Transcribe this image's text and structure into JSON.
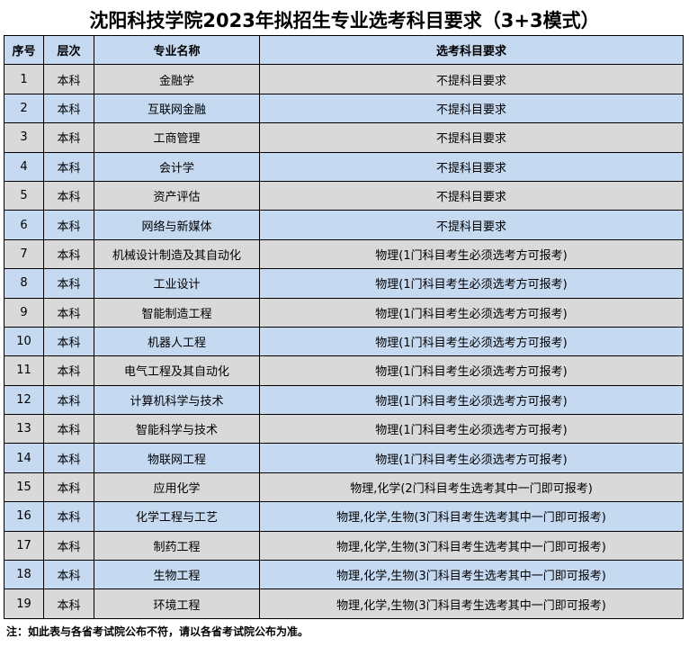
{
  "title": "沈阳科技学院2023年拟招生专业选考科目要求（3+3模式）",
  "headers": [
    "序号",
    "层次",
    "专业名称",
    "选考科目要求"
  ],
  "rows": [
    [
      "1",
      "本科",
      "金融学",
      "不提科目要求"
    ],
    [
      "2",
      "本科",
      "互联网金融",
      "不提科目要求"
    ],
    [
      "3",
      "本科",
      "工商管理",
      "不提科目要求"
    ],
    [
      "4",
      "本科",
      "会计学",
      "不提科目要求"
    ],
    [
      "5",
      "本科",
      "资产评估",
      "不提科目要求"
    ],
    [
      "6",
      "本科",
      "网络与新媒体",
      "不提科目要求"
    ],
    [
      "7",
      "本科",
      "机械设计制造及其自动化",
      "物理(1门科目考生必须选考方可报考)"
    ],
    [
      "8",
      "本科",
      "工业设计",
      "物理(1门科目考生必须选考方可报考)"
    ],
    [
      "9",
      "本科",
      "智能制造工程",
      "物理(1门科目考生必须选考方可报考)"
    ],
    [
      "10",
      "本科",
      "机器人工程",
      "物理(1门科目考生必须选考方可报考)"
    ],
    [
      "11",
      "本科",
      "电气工程及其自动化",
      "物理(1门科目考生必须选考方可报考)"
    ],
    [
      "12",
      "本科",
      "计算机科学与技术",
      "物理(1门科目考生必须选考方可报考)"
    ],
    [
      "13",
      "本科",
      "智能科学与技术",
      "物理(1门科目考生必须选考方可报考)"
    ],
    [
      "14",
      "本科",
      "物联网工程",
      "物理(1门科目考生必须选考方可报考)"
    ],
    [
      "15",
      "本科",
      "应用化学",
      "物理,化学(2门科目考生选考其中一门即可报考)"
    ],
    [
      "16",
      "本科",
      "化学工程与工艺",
      "物理,化学,生物(3门科目考生选考其中一门即可报考)"
    ],
    [
      "17",
      "本科",
      "制药工程",
      "物理,化学,生物(3门科目考生选考其中一门即可报考)"
    ],
    [
      "18",
      "本科",
      "生物工程",
      "物理,化学,生物(3门科目考生选考其中一门即可报考)"
    ],
    [
      "19",
      "本科",
      "环境工程",
      "物理,化学,生物(3门科目考生选考其中一门即可报考)"
    ]
  ],
  "note": "注：如此表与各省考试院公布不符，请以各省考试院公布为准。",
  "colors": {
    "header": "#c5d9f1",
    "odd_row": "#d9d9d9",
    "even_row": "#c5d9f1"
  }
}
